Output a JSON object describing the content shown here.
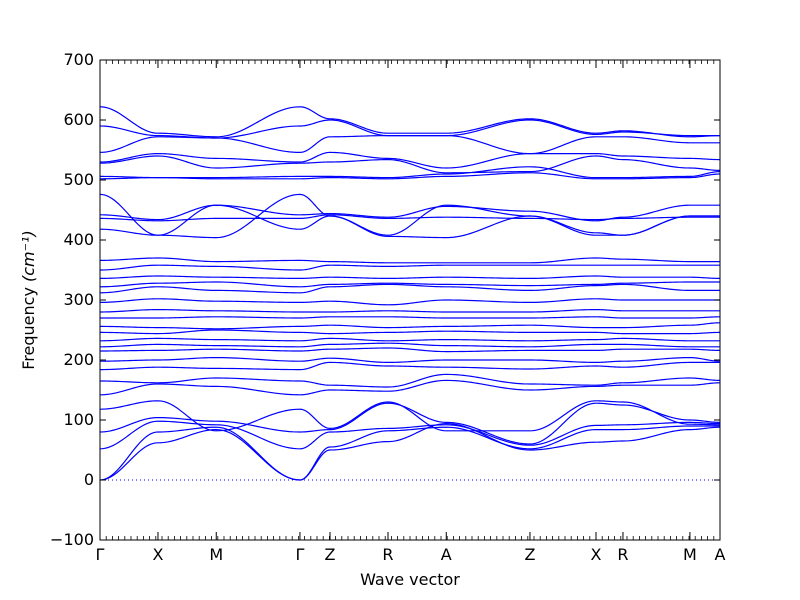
{
  "chart_data": {
    "type": "line",
    "title": "",
    "xlabel": "Wave vector",
    "ylabel": "Frequency",
    "ylabel_unit_html": "(cm⁻¹)",
    "ylim": [
      -100,
      700
    ],
    "yticks": [
      -100,
      0,
      100,
      200,
      300,
      400,
      500,
      600,
      700
    ],
    "grid": false,
    "line_color": "#0000ff",
    "zero_line_color": "#0000ff",
    "high_symmetry_points": [
      {
        "label": "Γ",
        "x": 0.0
      },
      {
        "label": "X",
        "x": 0.0935
      },
      {
        "label": "M",
        "x": 0.1875
      },
      {
        "label": "Γ",
        "x": 0.3225
      },
      {
        "label": "Z",
        "x": 0.371
      },
      {
        "label": "R",
        "x": 0.4645
      },
      {
        "label": "A",
        "x": 0.5585
      },
      {
        "label": "Z",
        "x": 0.6935
      },
      {
        "label": "X",
        "x": 0.8
      },
      {
        "label": "R",
        "x": 0.8435
      },
      {
        "label": "M",
        "x": 0.9515
      },
      {
        "label": "A",
        "x": 1.0
      }
    ],
    "series": [
      {
        "values": [
          0,
          62,
          84,
          0,
          50,
          64,
          94,
          50,
          63,
          65,
          84,
          88
        ]
      },
      {
        "values": [
          0,
          80,
          88,
          0,
          55,
          82,
          88,
          52,
          84,
          84,
          90,
          90
        ]
      },
      {
        "values": [
          52,
          98,
          92,
          52,
          80,
          86,
          92,
          58,
          91,
          92,
          96,
          94
        ]
      },
      {
        "values": [
          80,
          104,
          98,
          80,
          84,
          128,
          96,
          60,
          128,
          125,
          100,
          96
        ]
      },
      {
        "values": [
          118,
          132,
          82,
          118,
          86,
          130,
          82,
          82,
          132,
          130,
          93,
          92
        ]
      },
      {
        "values": [
          142,
          160,
          156,
          142,
          150,
          148,
          166,
          150,
          156,
          158,
          158,
          162
        ]
      },
      {
        "values": [
          165,
          162,
          170,
          165,
          158,
          155,
          176,
          160,
          158,
          162,
          170,
          166
        ]
      },
      {
        "values": [
          184,
          188,
          186,
          184,
          196,
          190,
          188,
          185,
          190,
          188,
          196,
          196
        ]
      },
      {
        "values": [
          198,
          200,
          204,
          198,
          203,
          196,
          200,
          200,
          196,
          198,
          204,
          198
        ]
      },
      {
        "values": [
          215,
          216,
          218,
          215,
          218,
          220,
          214,
          216,
          216,
          218,
          218,
          216
        ]
      },
      {
        "values": [
          222,
          226,
          224,
          222,
          226,
          228,
          224,
          222,
          226,
          226,
          222,
          222
        ]
      },
      {
        "values": [
          232,
          236,
          234,
          232,
          236,
          232,
          234,
          232,
          234,
          236,
          232,
          232
        ]
      },
      {
        "values": [
          246,
          244,
          250,
          246,
          244,
          246,
          248,
          246,
          246,
          244,
          244,
          246
        ]
      },
      {
        "values": [
          256,
          254,
          252,
          256,
          258,
          254,
          256,
          258,
          254,
          254,
          258,
          262
        ]
      },
      {
        "values": [
          270,
          270,
          272,
          270,
          272,
          272,
          270,
          270,
          272,
          270,
          270,
          272
        ]
      },
      {
        "values": [
          280,
          284,
          282,
          280,
          280,
          282,
          280,
          280,
          284,
          282,
          282,
          282
        ]
      },
      {
        "values": [
          296,
          302,
          298,
          296,
          298,
          292,
          300,
          296,
          302,
          300,
          300,
          300
        ]
      },
      {
        "values": [
          312,
          322,
          316,
          312,
          322,
          326,
          322,
          316,
          324,
          326,
          316,
          316
        ]
      },
      {
        "values": [
          322,
          328,
          330,
          322,
          326,
          328,
          326,
          324,
          326,
          328,
          330,
          330
        ]
      },
      {
        "values": [
          336,
          340,
          338,
          336,
          338,
          336,
          338,
          336,
          340,
          338,
          338,
          336
        ]
      },
      {
        "values": [
          350,
          358,
          356,
          350,
          358,
          356,
          358,
          358,
          358,
          358,
          358,
          358
        ]
      },
      {
        "values": [
          366,
          370,
          364,
          366,
          364,
          362,
          362,
          362,
          370,
          368,
          364,
          364
        ]
      },
      {
        "values": [
          418,
          408,
          458,
          418,
          440,
          408,
          458,
          440,
          412,
          408,
          440,
          440
        ]
      },
      {
        "values": [
          436,
          432,
          436,
          436,
          442,
          436,
          438,
          436,
          434,
          436,
          438,
          438
        ]
      },
      {
        "values": [
          442,
          434,
          458,
          442,
          444,
          438,
          456,
          448,
          432,
          438,
          458,
          458
        ]
      },
      {
        "values": [
          476,
          408,
          404,
          476,
          440,
          406,
          404,
          440,
          408,
          408,
          440,
          440
        ]
      },
      {
        "values": [
          502,
          504,
          502,
          502,
          504,
          502,
          506,
          512,
          502,
          502,
          504,
          510
        ]
      },
      {
        "values": [
          506,
          504,
          504,
          506,
          506,
          504,
          510,
          522,
          504,
          504,
          506,
          514
        ]
      },
      {
        "values": [
          528,
          540,
          520,
          528,
          530,
          534,
          512,
          514,
          540,
          534,
          520,
          516
        ]
      },
      {
        "values": [
          530,
          544,
          536,
          530,
          546,
          536,
          520,
          544,
          544,
          540,
          536,
          534
        ]
      },
      {
        "values": [
          546,
          572,
          570,
          546,
          572,
          574,
          574,
          544,
          572,
          572,
          562,
          562
        ]
      },
      {
        "values": [
          590,
          574,
          570,
          590,
          600,
          574,
          574,
          600,
          576,
          580,
          574,
          574
        ]
      },
      {
        "values": [
          622,
          578,
          572,
          622,
          602,
          578,
          578,
          602,
          578,
          582,
          572,
          574
        ]
      }
    ]
  }
}
